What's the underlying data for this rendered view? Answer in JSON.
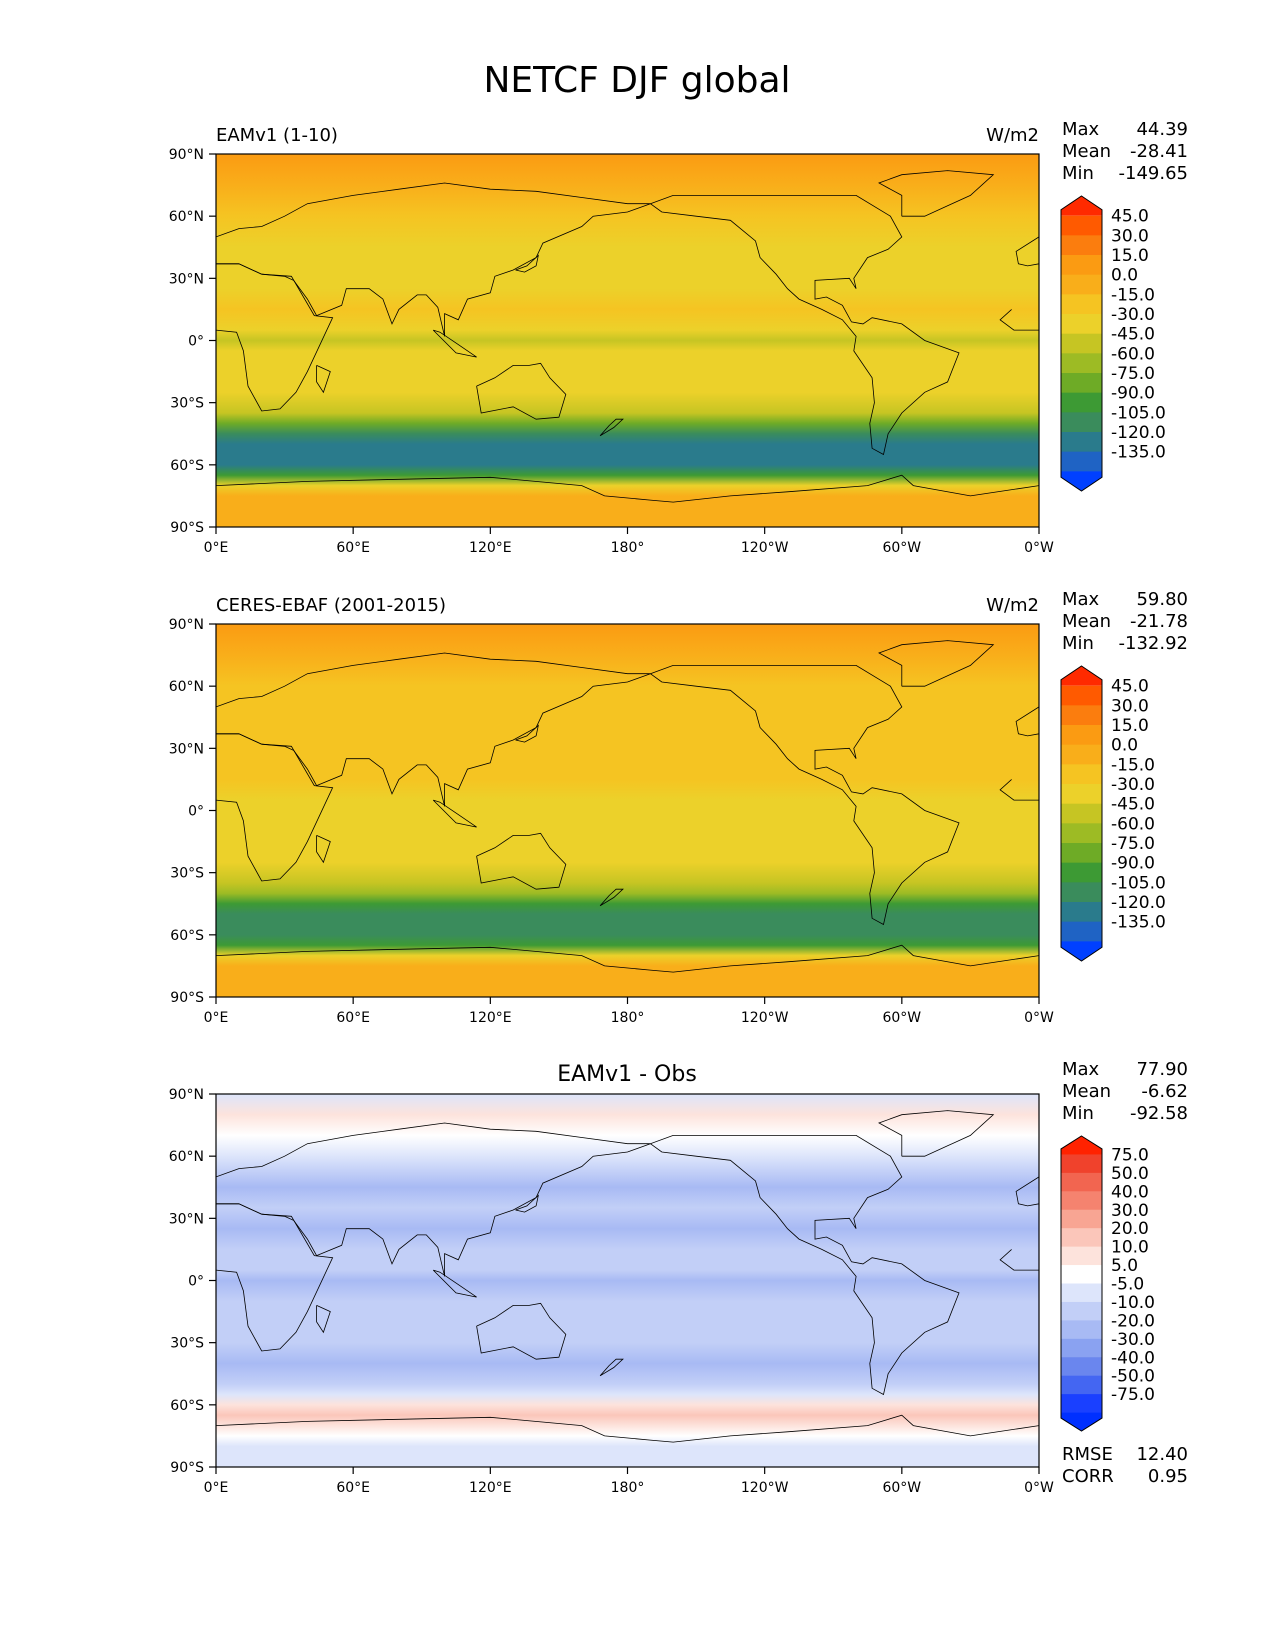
{
  "figure_title": "NETCF DJF global",
  "chart_data": [
    {
      "type": "heatmap",
      "title": "EAMv1 (1-10)",
      "units": "W/m2",
      "stats": {
        "max_label": "Max",
        "max": "44.39",
        "mean_label": "Mean",
        "mean": "-28.41",
        "min_label": "Min",
        "min": "-149.65"
      },
      "x_ticks": [
        "0°E",
        "60°E",
        "120°E",
        "180°",
        "120°W",
        "60°W",
        "0°W"
      ],
      "y_ticks": [
        "90°N",
        "60°N",
        "30°N",
        "0°",
        "30°S",
        "60°S",
        "90°S"
      ],
      "xlim": [
        0,
        360
      ],
      "ylim": [
        -90,
        90
      ],
      "colorbar": {
        "extend": "both",
        "levels": [
          "45.0",
          "30.0",
          "15.0",
          "0.0",
          "-15.0",
          "-30.0",
          "-45.0",
          "-60.0",
          "-75.0",
          "-90.0",
          "-105.0",
          "-120.0",
          "-135.0"
        ],
        "colors": [
          "#ff2a00",
          "#ff5a00",
          "#fb7d0e",
          "#fb9b12",
          "#f9ae1a",
          "#f5c422",
          "#ecd12a",
          "#c6c523",
          "#9dbb24",
          "#6eab26",
          "#3d9a34",
          "#3a8c5c",
          "#2a7b8c",
          "#1f63c4",
          "#0040ff"
        ]
      },
      "zonal_profile": {
        "lat": [
          90,
          75,
          60,
          45,
          35,
          25,
          15,
          5,
          0,
          -5,
          -15,
          -25,
          -35,
          -40,
          -45,
          -50,
          -55,
          -60,
          -65,
          -70,
          -75,
          -90
        ],
        "value": [
          20,
          5,
          -8,
          -20,
          -25,
          -20,
          -15,
          -25,
          -35,
          -30,
          -25,
          -30,
          -45,
          -70,
          -100,
          -120,
          -120,
          -110,
          -80,
          -30,
          0,
          10
        ]
      }
    },
    {
      "type": "heatmap",
      "title": "CERES-EBAF (2001-2015)",
      "units": "W/m2",
      "stats": {
        "max_label": "Max",
        "max": "59.80",
        "mean_label": "Mean",
        "mean": "-21.78",
        "min_label": "Min",
        "min": "-132.92"
      },
      "x_ticks": [
        "0°E",
        "60°E",
        "120°E",
        "180°",
        "120°W",
        "60°W",
        "0°W"
      ],
      "y_ticks": [
        "90°N",
        "60°N",
        "30°N",
        "0°",
        "30°S",
        "60°S",
        "90°S"
      ],
      "xlim": [
        0,
        360
      ],
      "ylim": [
        -90,
        90
      ],
      "colorbar": {
        "extend": "both",
        "levels": [
          "45.0",
          "30.0",
          "15.0",
          "0.0",
          "-15.0",
          "-30.0",
          "-45.0",
          "-60.0",
          "-75.0",
          "-90.0",
          "-105.0",
          "-120.0",
          "-135.0"
        ],
        "colors": [
          "#ff2a00",
          "#ff5a00",
          "#fb7d0e",
          "#fb9b12",
          "#f9ae1a",
          "#f5c422",
          "#ecd12a",
          "#c6c523",
          "#9dbb24",
          "#6eab26",
          "#3d9a34",
          "#3a8c5c",
          "#2a7b8c",
          "#1f63c4",
          "#0040ff"
        ]
      },
      "zonal_profile": {
        "lat": [
          90,
          75,
          60,
          45,
          35,
          25,
          15,
          5,
          0,
          -5,
          -15,
          -25,
          -35,
          -40,
          -45,
          -50,
          -55,
          -60,
          -65,
          -70,
          -75,
          -90
        ],
        "value": [
          20,
          8,
          -5,
          -12,
          -15,
          -10,
          -12,
          -22,
          -28,
          -25,
          -18,
          -20,
          -35,
          -55,
          -85,
          -100,
          -105,
          -100,
          -80,
          -20,
          5,
          10
        ]
      }
    },
    {
      "type": "heatmap",
      "title": "EAMv1 - Obs",
      "units": "",
      "stats": {
        "max_label": "Max",
        "max": "77.90",
        "mean_label": "Mean",
        "mean": "-6.62",
        "min_label": "Min",
        "min": "-92.58"
      },
      "metrics": {
        "rmse_label": "RMSE",
        "rmse": "12.40",
        "corr_label": "CORR",
        "corr": "0.95"
      },
      "x_ticks": [
        "0°E",
        "60°E",
        "120°E",
        "180°",
        "120°W",
        "60°W",
        "0°W"
      ],
      "y_ticks": [
        "90°N",
        "60°N",
        "30°N",
        "0°",
        "30°S",
        "60°S",
        "90°S"
      ],
      "xlim": [
        0,
        360
      ],
      "ylim": [
        -90,
        90
      ],
      "colorbar": {
        "extend": "both",
        "levels": [
          "75.0",
          "50.0",
          "40.0",
          "30.0",
          "20.0",
          "10.0",
          "5.0",
          "-5.0",
          "-10.0",
          "-20.0",
          "-30.0",
          "-40.0",
          "-50.0",
          "-75.0"
        ],
        "colors": [
          "#ff2200",
          "#f0422c",
          "#f26550",
          "#f5836f",
          "#f8a593",
          "#fbc6ba",
          "#fde3dc",
          "#ffffff",
          "#dde5fb",
          "#c2cff7",
          "#a8baf4",
          "#8aa2f1",
          "#6a86ee",
          "#4466f2",
          "#1a40ff",
          "#0030ff"
        ]
      },
      "zonal_profile": {
        "lat": [
          90,
          80,
          70,
          60,
          45,
          35,
          25,
          15,
          5,
          0,
          -10,
          -20,
          -30,
          -40,
          -50,
          -55,
          -60,
          -65,
          -70,
          -75,
          -80,
          -90
        ],
        "value": [
          0,
          10,
          8,
          -3,
          -12,
          -10,
          -15,
          -10,
          -8,
          -12,
          -10,
          -6,
          -10,
          -18,
          -8,
          2,
          15,
          25,
          15,
          5,
          0,
          0
        ]
      }
    }
  ]
}
